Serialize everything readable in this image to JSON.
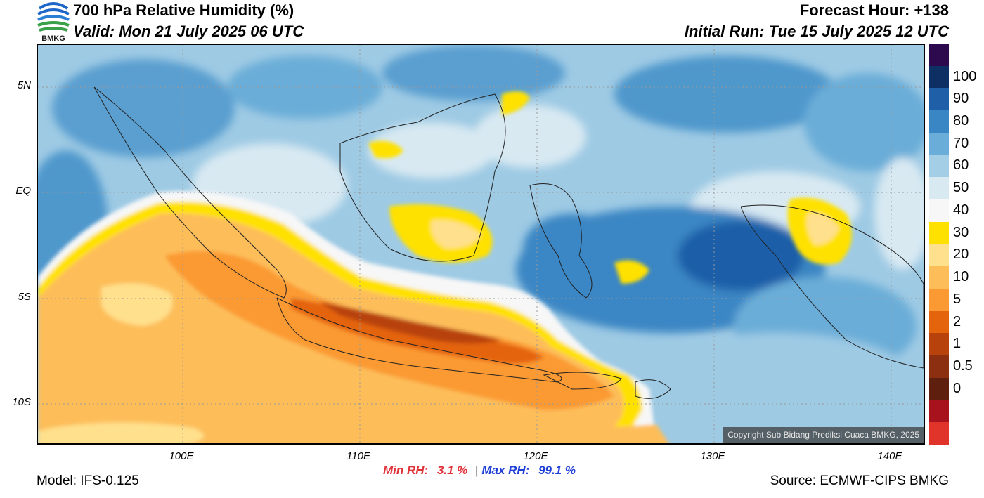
{
  "header": {
    "title": "700 hPa Relative Humidity (%)",
    "valid": "Valid: Mon 21 July 2025 06 UTC",
    "forecast_hour": "Forecast Hour: +138",
    "initial_run": "Initial Run: Tue 15 July 2025 12 UTC",
    "logo_text": "BMKG"
  },
  "axes": {
    "lat_labels": [
      "5N",
      "EQ",
      "5S",
      "10S"
    ],
    "lon_labels": [
      "100E",
      "110E",
      "120E",
      "130E",
      "140E"
    ]
  },
  "colorbar": {
    "labels": [
      "100",
      "90",
      "80",
      "70",
      "60",
      "50",
      "40",
      "30",
      "20",
      "10",
      "5",
      "2",
      "1",
      "0.5",
      "0"
    ],
    "colors": [
      "#2d0a4e",
      "#0d2f63",
      "#1e5fa8",
      "#3a86c4",
      "#6aadd8",
      "#a4cde6",
      "#d8e9f2",
      "#f7f7f7",
      "#ffe100",
      "#ffe08c",
      "#fdbe5a",
      "#fb9a33",
      "#e4640d",
      "#b8420c",
      "#8c2e10",
      "#5e1f0e",
      "#a8121c",
      "#e0332a"
    ]
  },
  "stats": {
    "min_label": "Min RH:",
    "min_value": "3.1 %",
    "separator": "|",
    "max_label": "Max RH:",
    "max_value": "99.1 %",
    "min_color": "#e0333a",
    "max_color": "#1f3fd6"
  },
  "copyright": "Copyright Sub Bidang Prediksi Cuaca BMKG, 2025",
  "footer": {
    "model": "Model: IFS-0.125",
    "source": "Source: ECMWF-CIPS BMKG"
  }
}
